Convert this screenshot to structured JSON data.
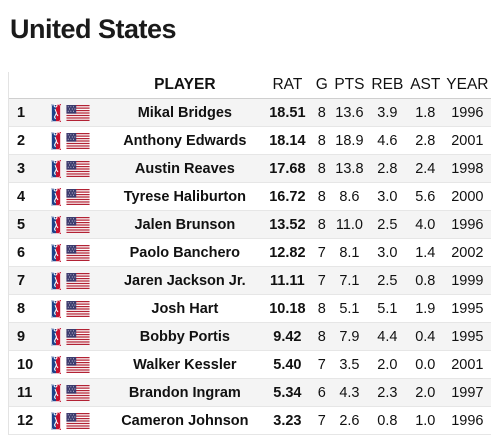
{
  "page": {
    "title": "United States"
  },
  "table": {
    "columns": {
      "player": "PLAYER",
      "rat": "RAT",
      "g": "G",
      "pts": "PTS",
      "reb": "REB",
      "ast": "AST",
      "year": "YEAR"
    },
    "rows": [
      {
        "rank": "1",
        "player": "Mikal Bridges",
        "rat": "18.51",
        "g": "8",
        "pts": "13.6",
        "reb": "3.9",
        "ast": "1.8",
        "year": "1996"
      },
      {
        "rank": "2",
        "player": "Anthony Edwards",
        "rat": "18.14",
        "g": "8",
        "pts": "18.9",
        "reb": "4.6",
        "ast": "2.8",
        "year": "2001"
      },
      {
        "rank": "3",
        "player": "Austin Reaves",
        "rat": "17.68",
        "g": "8",
        "pts": "13.8",
        "reb": "2.8",
        "ast": "2.4",
        "year": "1998"
      },
      {
        "rank": "4",
        "player": "Tyrese Haliburton",
        "rat": "16.72",
        "g": "8",
        "pts": "8.6",
        "reb": "3.0",
        "ast": "5.6",
        "year": "2000"
      },
      {
        "rank": "5",
        "player": "Jalen Brunson",
        "rat": "13.52",
        "g": "8",
        "pts": "11.0",
        "reb": "2.5",
        "ast": "4.0",
        "year": "1996"
      },
      {
        "rank": "6",
        "player": "Paolo Banchero",
        "rat": "12.82",
        "g": "7",
        "pts": "8.1",
        "reb": "3.0",
        "ast": "1.4",
        "year": "2002"
      },
      {
        "rank": "7",
        "player": "Jaren Jackson Jr.",
        "rat": "11.11",
        "g": "7",
        "pts": "7.1",
        "reb": "2.5",
        "ast": "0.8",
        "year": "1999"
      },
      {
        "rank": "8",
        "player": "Josh Hart",
        "rat": "10.18",
        "g": "8",
        "pts": "5.1",
        "reb": "5.1",
        "ast": "1.9",
        "year": "1995"
      },
      {
        "rank": "9",
        "player": "Bobby Portis",
        "rat": "9.42",
        "g": "8",
        "pts": "7.9",
        "reb": "4.4",
        "ast": "0.4",
        "year": "1995"
      },
      {
        "rank": "10",
        "player": "Walker Kessler",
        "rat": "5.40",
        "g": "7",
        "pts": "3.5",
        "reb": "2.0",
        "ast": "0.0",
        "year": "2001"
      },
      {
        "rank": "11",
        "player": "Brandon Ingram",
        "rat": "5.34",
        "g": "6",
        "pts": "4.3",
        "reb": "2.3",
        "ast": "2.0",
        "year": "1997"
      },
      {
        "rank": "12",
        "player": "Cameron Johnson",
        "rat": "3.23",
        "g": "7",
        "pts": "2.6",
        "reb": "0.8",
        "ast": "1.0",
        "year": "1996"
      }
    ]
  },
  "icons": {
    "league": "nba-logo-icon",
    "flag": "us-flag-icon"
  },
  "colors": {
    "flag_red": "#b22234",
    "flag_blue": "#3c3b6e",
    "logo_red": "#c8102e",
    "logo_blue": "#1d428a",
    "stripe": "#f4f4f4"
  }
}
